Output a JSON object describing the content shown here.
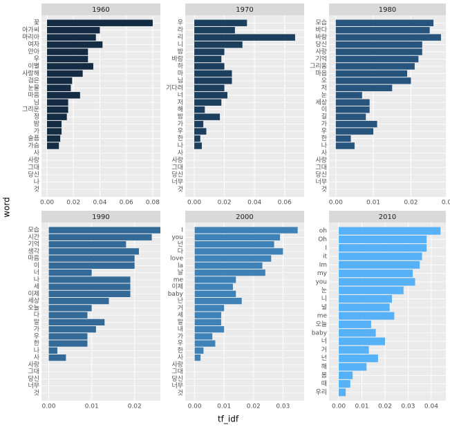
{
  "xlabel": "tf_idf",
  "ylabel": "word",
  "chart_data": [
    {
      "type": "bar",
      "title": "1960",
      "color": "#132b43",
      "categories": [
        "꽃",
        "아가씨",
        "마리아",
        "여자",
        "안아",
        "우",
        "이별",
        "사랑해",
        "검은",
        "눈물",
        "마음",
        "님",
        "그리운",
        "정",
        "밤",
        "가",
        "슬픔",
        "가슴",
        "사",
        "사랑",
        "그대",
        "당신",
        "나",
        "것"
      ],
      "values": [
        0.08,
        0.04,
        0.037,
        0.042,
        0.031,
        0.031,
        0.035,
        0.027,
        0.019,
        0.018,
        0.025,
        0.016,
        0.016,
        0.015,
        0.011,
        0.011,
        0.01,
        0.009,
        0,
        0,
        0,
        0,
        0,
        0
      ],
      "xlim": [
        -0.0042,
        0.0858
      ],
      "xticks": [
        {
          "value": 0,
          "label": "0.00"
        },
        {
          "value": 0.02,
          "label": "0.02"
        },
        {
          "value": 0.04,
          "label": "0.04"
        },
        {
          "value": 0.06,
          "label": "0.06"
        },
        {
          "value": 0.08,
          "label": "0.08"
        }
      ]
    },
    {
      "type": "bar",
      "title": "1970",
      "color": "#1d3f5e",
      "categories": [
        "우",
        "라",
        "리",
        "니",
        "밤",
        "바람",
        "하",
        "마",
        "님",
        "기다려",
        "너",
        "저",
        "해",
        "밤",
        "가",
        "우",
        "한",
        "나",
        "사",
        "사랑",
        "그대",
        "당신",
        "너무",
        "것"
      ],
      "values": [
        0.035,
        0.027,
        0.067,
        0.032,
        0.02,
        0.018,
        0.02,
        0.025,
        0.025,
        0.02,
        0.022,
        0.018,
        0.007,
        0.017,
        0.006,
        0.008,
        0.004,
        0.005,
        0,
        0,
        0,
        0,
        0,
        0
      ],
      "xlim": [
        -0.006,
        0.073
      ],
      "xticks": [
        {
          "value": 0,
          "label": "0.00"
        },
        {
          "value": 0.02,
          "label": "0.02"
        },
        {
          "value": 0.04,
          "label": "0.04"
        },
        {
          "value": 0.06,
          "label": "0.06"
        }
      ]
    },
    {
      "type": "bar",
      "title": "1980",
      "color": "#26547c",
      "categories": [
        "모습",
        "바다",
        "바람",
        "당신",
        "사랑",
        "기억",
        "그리움",
        "마음",
        "오",
        "저",
        "눈",
        "세상",
        "이",
        "길",
        "가",
        "우",
        "한",
        "나",
        "사",
        "사랑",
        "그대",
        "당신",
        "너무",
        "것"
      ],
      "values": [
        0.026,
        0.025,
        0.028,
        0.023,
        0.023,
        0.022,
        0.021,
        0.019,
        0.02,
        0.015,
        0.007,
        0.009,
        0.009,
        0.008,
        0.011,
        0.01,
        0.004,
        0.005,
        0,
        0,
        0,
        0,
        0,
        0
      ],
      "xlim": [
        -0.0018,
        0.0293
      ],
      "xticks": [
        {
          "value": 0,
          "label": "0.00"
        },
        {
          "value": 0.01,
          "label": "0.01"
        },
        {
          "value": 0.02,
          "label": "0.02"
        },
        {
          "value": 0.03,
          "label": "0.03"
        }
      ]
    },
    {
      "type": "bar",
      "title": "1990",
      "color": "#336a98",
      "categories": [
        "모습",
        "시간",
        "기억",
        "생각",
        "마음",
        "이",
        "너",
        "나",
        "세",
        "이제",
        "세상",
        "오늘",
        "다",
        "말",
        "가",
        "우",
        "한",
        "나",
        "사",
        "사랑",
        "그대",
        "당신",
        "너무",
        "것"
      ],
      "values": [
        0.026,
        0.024,
        0.018,
        0.021,
        0.02,
        0.02,
        0.01,
        0.019,
        0.019,
        0.019,
        0.014,
        0.01,
        0.009,
        0.013,
        0.011,
        0.009,
        0.009,
        0.002,
        0.004,
        0,
        0,
        0,
        0,
        0
      ],
      "xlim": [
        -0.0017,
        0.026
      ],
      "xticks": [
        {
          "value": 0,
          "label": "0.00"
        },
        {
          "value": 0.01,
          "label": "0.01"
        },
        {
          "value": 0.02,
          "label": "0.02"
        }
      ]
    },
    {
      "type": "bar",
      "title": "2000",
      "color": "#3f82b8",
      "categories": [
        "I",
        "you",
        "넌",
        "다",
        "love",
        "la",
        "날",
        "me",
        "이제",
        "baby",
        "난",
        "거",
        "세",
        "말",
        "내",
        "가",
        "우",
        "한",
        "사",
        "사랑",
        "그대",
        "당신",
        "너무",
        "것"
      ],
      "values": [
        0.035,
        0.029,
        0.027,
        0.03,
        0.026,
        0.023,
        0.024,
        0.014,
        0.013,
        0.014,
        0.016,
        0.01,
        0.009,
        0.009,
        0.01,
        0.006,
        0.007,
        0.003,
        0.002,
        0,
        0,
        0,
        0,
        0
      ],
      "xlim": [
        -0.0032,
        0.0372
      ],
      "xticks": [
        {
          "value": 0,
          "label": "0.00"
        },
        {
          "value": 0.01,
          "label": "0.01"
        },
        {
          "value": 0.02,
          "label": "0.02"
        },
        {
          "value": 0.03,
          "label": "0.03"
        }
      ]
    },
    {
      "type": "bar",
      "title": "2010",
      "color": "#56b1f7",
      "categories": [
        "oh",
        "Oh",
        "I",
        "it",
        "Im",
        "my",
        "you",
        "눈",
        "니",
        "널",
        "me",
        "오늘",
        "baby",
        "너",
        "거",
        "넌",
        "해",
        "봄",
        "때",
        "우리"
      ],
      "values": [
        0.044,
        0.038,
        0.038,
        0.036,
        0.035,
        0.032,
        0.033,
        0.028,
        0.023,
        0.022,
        0.024,
        0.014,
        0.016,
        0.02,
        0.013,
        0.017,
        0.012,
        0.006,
        0.005,
        0.003
      ],
      "xlim": [
        -0.0042,
        0.0463
      ],
      "xticks": [
        {
          "value": 0,
          "label": "0.00"
        },
        {
          "value": 0.01,
          "label": "0.01"
        },
        {
          "value": 0.02,
          "label": "0.02"
        },
        {
          "value": 0.03,
          "label": "0.03"
        },
        {
          "value": 0.04,
          "label": "0.04"
        }
      ]
    }
  ]
}
